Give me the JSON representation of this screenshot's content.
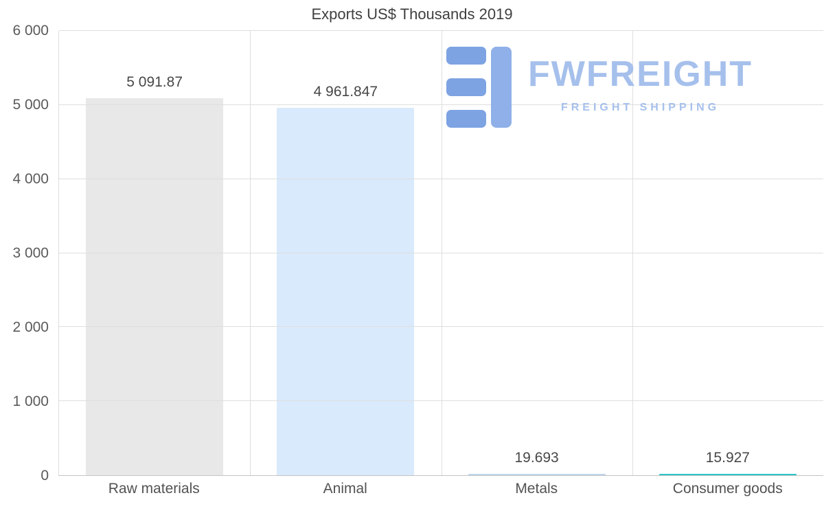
{
  "title": "Exports US$ Thousands 2019",
  "watermark": {
    "brand": "FWFREIGHT",
    "tagline": "FREIGHT SHIPPING",
    "color": "#a6c0ec"
  },
  "chart_data": {
    "type": "bar",
    "title": "Exports US$ Thousands 2019",
    "categories": [
      "Raw materials",
      "Animal",
      "Metals",
      "Consumer goods"
    ],
    "values": [
      5091.87,
      4961.847,
      19.693,
      15.927
    ],
    "value_labels": [
      "5 091.87",
      "4 961.847",
      "19.693",
      "15.927"
    ],
    "bar_colors": [
      "#e8e8e8",
      "#d9eafc",
      "#bdd7ed",
      "#2cc5c9"
    ],
    "xlabel": "",
    "ylabel": "",
    "ylim": [
      0,
      6000
    ],
    "yticks": [
      0,
      1000,
      2000,
      3000,
      4000,
      5000,
      6000
    ],
    "ytick_labels": [
      "0",
      "1 000",
      "2 000",
      "3 000",
      "4 000",
      "5 000",
      "6 000"
    ],
    "grid": true,
    "legend": false
  }
}
